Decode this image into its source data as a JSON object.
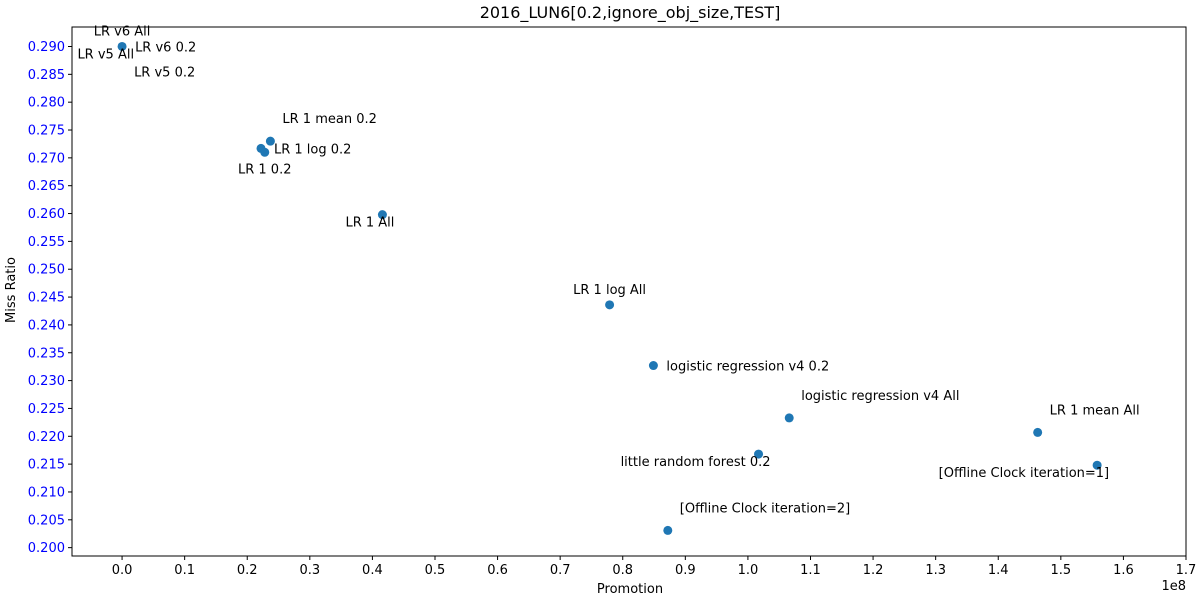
{
  "chart_data": {
    "type": "scatter",
    "title": "2016_LUN6[0.2,ignore_obj_size,TEST]",
    "xlabel": "Promotion",
    "ylabel": "Miss Ratio",
    "x_offset_label": "1e8",
    "xlim": [
      -0.08,
      1.7
    ],
    "ylim": [
      0.1985,
      0.2935
    ],
    "x_ticks": [
      0.0,
      0.1,
      0.2,
      0.3,
      0.4,
      0.5,
      0.6,
      0.7,
      0.8,
      0.9,
      1.0,
      1.1,
      1.2,
      1.3,
      1.4,
      1.5,
      1.6,
      1.7
    ],
    "x_tick_labels": [
      "0.0",
      "0.1",
      "0.2",
      "0.3",
      "0.4",
      "0.5",
      "0.6",
      "0.7",
      "0.8",
      "0.9",
      "1.0",
      "1.1",
      "1.2",
      "1.3",
      "1.4",
      "1.5",
      "1.6",
      "1.7"
    ],
    "y_ticks": [
      0.2,
      0.205,
      0.21,
      0.215,
      0.22,
      0.225,
      0.23,
      0.235,
      0.24,
      0.245,
      0.25,
      0.255,
      0.26,
      0.265,
      0.27,
      0.275,
      0.28,
      0.285,
      0.29
    ],
    "y_tick_labels": [
      "0.200",
      "0.205",
      "0.210",
      "0.215",
      "0.220",
      "0.225",
      "0.230",
      "0.235",
      "0.240",
      "0.245",
      "0.250",
      "0.255",
      "0.260",
      "0.265",
      "0.270",
      "0.275",
      "0.280",
      "0.285",
      "0.290"
    ],
    "grid": false,
    "point_color": "#1f77b4",
    "y_tick_label_color": "#0000ff",
    "points": [
      {
        "x": 0.0,
        "y": 0.29,
        "label": "LR v6 All",
        "anchor": "above"
      },
      {
        "x": 0.0,
        "y": 0.29,
        "label": "LR v5 All",
        "anchor": "below-left"
      },
      {
        "x": 0.0,
        "y": 0.29,
        "label": "LR v6 0.2",
        "anchor": "right"
      },
      {
        "x": 0.0,
        "y": 0.29,
        "label": "LR v5 0.2",
        "anchor": "below-right"
      },
      {
        "x": 0.237,
        "y": 0.273,
        "label": "LR 1 mean 0.2",
        "anchor": "above-right"
      },
      {
        "x": 0.222,
        "y": 0.2717,
        "label": "LR 1 log 0.2",
        "anchor": "right"
      },
      {
        "x": 0.228,
        "y": 0.271,
        "label": "LR 1 0.2",
        "anchor": "below"
      },
      {
        "x": 0.416,
        "y": 0.2598,
        "label": "LR 1 All",
        "anchor": "below-left"
      },
      {
        "x": 0.779,
        "y": 0.2436,
        "label": "LR 1 log All",
        "anchor": "above"
      },
      {
        "x": 0.849,
        "y": 0.2327,
        "label": "logistic regression v4 0.2",
        "anchor": "right"
      },
      {
        "x": 1.066,
        "y": 0.2233,
        "label": "logistic regression v4 All",
        "anchor": "above-right"
      },
      {
        "x": 1.017,
        "y": 0.2168,
        "label": "little random forest 0.2",
        "anchor": "below-left"
      },
      {
        "x": 1.463,
        "y": 0.2207,
        "label": "LR 1 mean All",
        "anchor": "above-right"
      },
      {
        "x": 1.558,
        "y": 0.2148,
        "label": "[Offline Clock iteration=1]",
        "anchor": "below-left"
      },
      {
        "x": 0.872,
        "y": 0.2031,
        "label": "[Offline Clock iteration=2]",
        "anchor": "above-right"
      }
    ]
  }
}
